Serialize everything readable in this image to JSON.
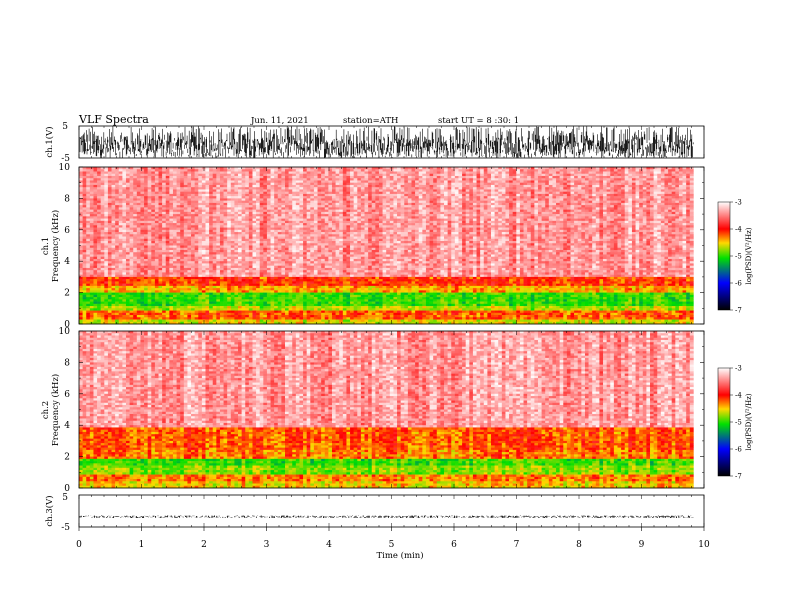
{
  "header": {
    "title": "VLF Spectra",
    "date": "Jun. 11, 2021",
    "station": "station=ATH",
    "start_ut": "start UT =   8 :30: 1"
  },
  "colorbar": {
    "label": "log(PSD)(V²/Hz)",
    "ticks": [
      "-3",
      "-4",
      "-5",
      "-6",
      "-7"
    ],
    "colors": [
      "#ffffff",
      "#ff0000",
      "#ffd800",
      "#00e000",
      "#0000ff",
      "#000000"
    ]
  },
  "x_axis_label": "Time (min)",
  "chart_data": [
    {
      "type": "line",
      "name": "ch1-waveform",
      "ylabel": "ch.1(V)",
      "ylim": [
        -5,
        5
      ],
      "y_ticks": [
        "5",
        "-5"
      ],
      "xlim": [
        0,
        10
      ],
      "data_xmax": 9.83,
      "amplitude_range": [
        -5,
        5
      ],
      "description_values": {
        "mean": 0,
        "min": -5,
        "max": 5
      }
    },
    {
      "type": "heatmap",
      "name": "ch1-spectrogram",
      "ylabel_top": "ch.1",
      "ylabel": "Frequency (kHz)",
      "ylim": [
        0,
        10
      ],
      "y_ticks": [
        "0",
        "2",
        "4",
        "6",
        "8",
        "10"
      ],
      "xlim": [
        0,
        10
      ],
      "data_xmax": 9.83,
      "zlim": [
        -7,
        -3
      ],
      "bands": [
        {
          "f_min": 0.0,
          "f_max": 0.3,
          "logPSD": -4.6
        },
        {
          "f_min": 0.3,
          "f_max": 0.8,
          "logPSD": -4.2
        },
        {
          "f_min": 0.8,
          "f_max": 1.2,
          "logPSD": -4.7
        },
        {
          "f_min": 1.2,
          "f_max": 2.0,
          "logPSD": -5.0
        },
        {
          "f_min": 2.0,
          "f_max": 2.4,
          "logPSD": -4.4
        },
        {
          "f_min": 2.4,
          "f_max": 3.0,
          "logPSD": -4.1
        },
        {
          "f_min": 3.0,
          "f_max": 10.0,
          "logPSD": -3.4
        }
      ]
    },
    {
      "type": "heatmap",
      "name": "ch2-spectrogram",
      "ylabel_top": "ch.2",
      "ylabel": "Frequency (kHz)",
      "ylim": [
        0,
        10
      ],
      "y_ticks": [
        "0",
        "2",
        "4",
        "6",
        "8",
        "10"
      ],
      "xlim": [
        0,
        10
      ],
      "data_xmax": 9.83,
      "zlim": [
        -7,
        -3
      ],
      "bands": [
        {
          "f_min": 0.0,
          "f_max": 0.4,
          "logPSD": -4.5
        },
        {
          "f_min": 0.4,
          "f_max": 0.9,
          "logPSD": -4.3
        },
        {
          "f_min": 0.9,
          "f_max": 1.4,
          "logPSD": -4.8
        },
        {
          "f_min": 1.4,
          "f_max": 1.9,
          "logPSD": -5.0
        },
        {
          "f_min": 1.9,
          "f_max": 2.4,
          "logPSD": -4.3
        },
        {
          "f_min": 2.4,
          "f_max": 3.8,
          "logPSD": -4.2
        },
        {
          "f_min": 3.8,
          "f_max": 10.0,
          "logPSD": -3.4
        }
      ]
    },
    {
      "type": "line",
      "name": "ch3-waveform",
      "ylabel": "ch.3(V)",
      "ylim": [
        -5,
        5
      ],
      "y_ticks": [
        "5",
        "-5"
      ],
      "xlim": [
        0,
        10
      ],
      "x_ticks": [
        "0",
        "1",
        "2",
        "3",
        "4",
        "5",
        "6",
        "7",
        "8",
        "9",
        "10"
      ],
      "data_xmax": 9.83,
      "mean_value": -1.8,
      "amplitude_range": [
        -2.2,
        -1.4
      ]
    }
  ]
}
